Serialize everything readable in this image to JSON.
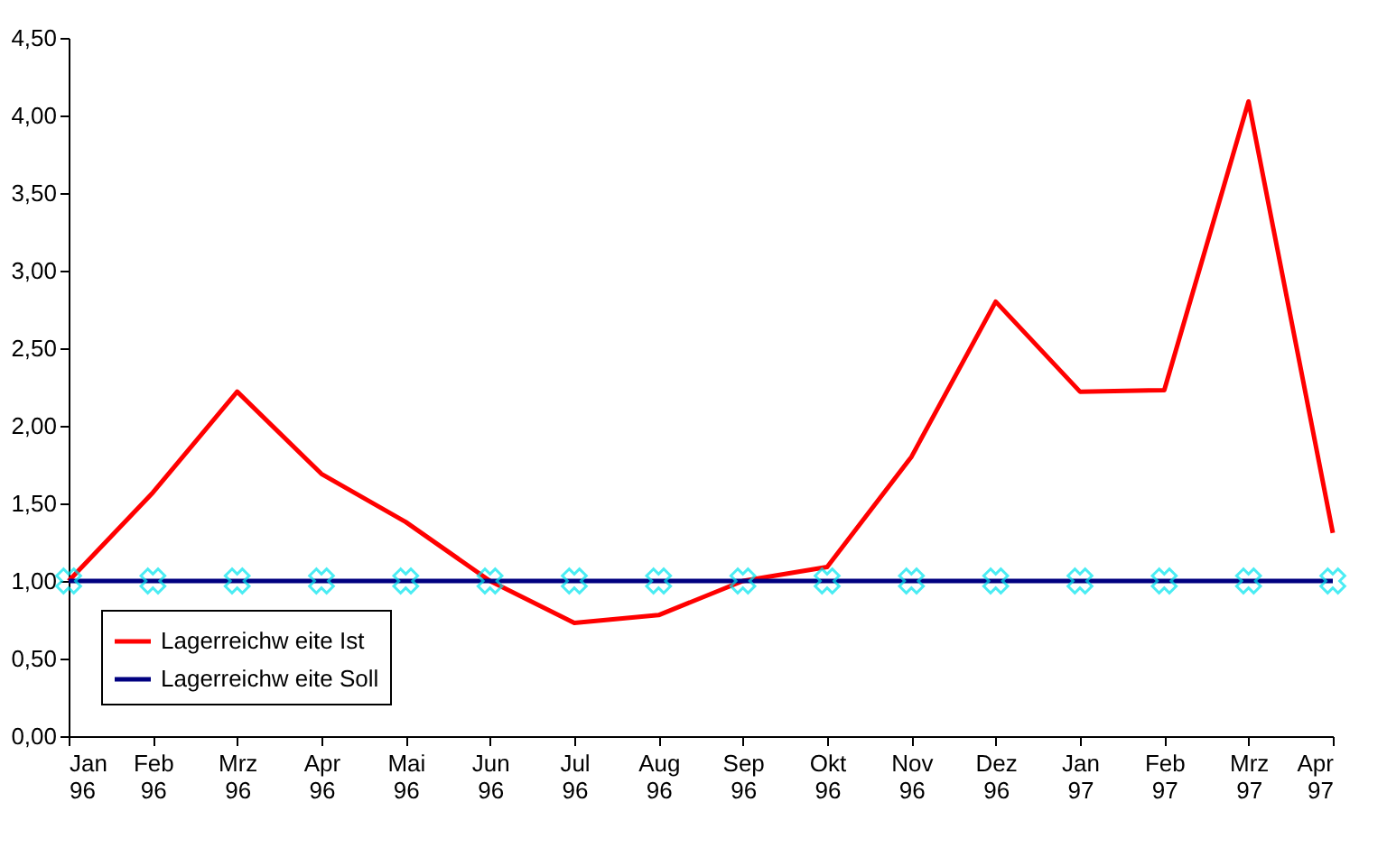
{
  "chart_data": {
    "type": "line",
    "categories": [
      "Jan 96",
      "Feb 96",
      "Mrz 96",
      "Apr 96",
      "Mai 96",
      "Jun 96",
      "Jul 96",
      "Aug 96",
      "Sep 96",
      "Okt 96",
      "Nov 96",
      "Dez 96",
      "Jan 97",
      "Feb 97",
      "Mrz 97",
      "Apr 97"
    ],
    "series": [
      {
        "name": "Lagerreichw eite Ist",
        "color": "#ff0000",
        "marker": "none",
        "values": [
          1.0,
          1.57,
          2.22,
          1.69,
          1.38,
          1.0,
          0.73,
          0.78,
          1.0,
          1.09,
          1.8,
          2.8,
          2.22,
          2.23,
          4.09,
          1.31
        ]
      },
      {
        "name": "Lagerreichw eite Soll",
        "color": "#000080",
        "marker": "cross",
        "values": [
          1.0,
          1.0,
          1.0,
          1.0,
          1.0,
          1.0,
          1.0,
          1.0,
          1.0,
          1.0,
          1.0,
          1.0,
          1.0,
          1.0,
          1.0,
          1.0
        ]
      }
    ],
    "ylim": [
      0,
      4.5
    ],
    "yticks": [
      {
        "value": 0,
        "label": "0,00"
      },
      {
        "value": 0.5,
        "label": "0,50"
      },
      {
        "value": 1,
        "label": "1,00"
      },
      {
        "value": 1.5,
        "label": "1,50"
      },
      {
        "value": 2,
        "label": "2,00"
      },
      {
        "value": 2.5,
        "label": "2,50"
      },
      {
        "value": 3,
        "label": "3,00"
      },
      {
        "value": 3.5,
        "label": "3,50"
      },
      {
        "value": 4,
        "label": "4,00"
      },
      {
        "value": 4.5,
        "label": "4,50"
      }
    ],
    "grid": false,
    "legend": "bottom left",
    "line_style": "solid"
  }
}
